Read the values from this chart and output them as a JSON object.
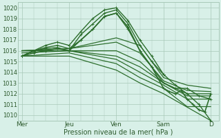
{
  "background_color": "#d8f0e8",
  "grid_color": "#a8c8b8",
  "line_color": "#2d6e2d",
  "marker_color": "#2d6e2d",
  "xlabel": "Pression niveau de la mer( hPa )",
  "yticks": [
    1010,
    1011,
    1012,
    1013,
    1014,
    1015,
    1016,
    1017,
    1018,
    1019,
    1020
  ],
  "xtick_labels": [
    "Mer",
    "Jeu",
    "Ven",
    "Sam",
    "D"
  ],
  "xtick_positions": [
    0,
    24,
    48,
    72,
    96
  ],
  "ylim": [
    1009.5,
    1020.5
  ],
  "xlim": [
    -2,
    100
  ],
  "series": [
    {
      "x": [
        0,
        6,
        12,
        18,
        24,
        30,
        36,
        42,
        48,
        54,
        60,
        66,
        72,
        78,
        84,
        90,
        96
      ],
      "y": [
        1015.5,
        1016.0,
        1016.3,
        1016.5,
        1016.2,
        1017.0,
        1018.0,
        1019.2,
        1019.5,
        1018.0,
        1016.0,
        1014.5,
        1013.0,
        1012.5,
        1012.5,
        1011.8,
        1011.5
      ],
      "marker": true,
      "lw": 1.0
    },
    {
      "x": [
        0,
        6,
        12,
        18,
        24,
        30,
        36,
        42,
        48,
        54,
        60,
        66,
        72,
        78,
        84,
        90,
        96
      ],
      "y": [
        1015.5,
        1016.0,
        1016.2,
        1016.3,
        1016.0,
        1017.5,
        1018.5,
        1019.5,
        1019.8,
        1018.5,
        1016.5,
        1015.0,
        1013.8,
        1012.8,
        1012.0,
        1011.0,
        1009.5
      ],
      "marker": true,
      "lw": 1.0
    },
    {
      "x": [
        0,
        6,
        12,
        18,
        24,
        30,
        36,
        42,
        48,
        54,
        60,
        66,
        72
      ],
      "y": [
        1015.5,
        1016.0,
        1016.5,
        1016.8,
        1016.5,
        1017.8,
        1019.0,
        1019.8,
        1020.0,
        1018.8,
        1017.0,
        1015.5,
        1013.8
      ],
      "marker": true,
      "lw": 1.0
    },
    {
      "x": [
        0,
        24,
        48,
        60,
        72,
        84,
        96
      ],
      "y": [
        1016.0,
        1016.2,
        1017.2,
        1016.5,
        1013.5,
        1012.8,
        1012.5
      ],
      "marker": false,
      "lw": 0.9
    },
    {
      "x": [
        0,
        24,
        48,
        60,
        72,
        84,
        96
      ],
      "y": [
        1016.0,
        1016.2,
        1016.8,
        1015.8,
        1013.2,
        1012.3,
        1012.2
      ],
      "marker": false,
      "lw": 0.9
    },
    {
      "x": [
        0,
        24,
        48,
        60,
        72,
        84,
        96
      ],
      "y": [
        1016.0,
        1016.0,
        1016.0,
        1015.0,
        1013.0,
        1012.0,
        1012.0
      ],
      "marker": false,
      "lw": 0.9
    },
    {
      "x": [
        0,
        24,
        48,
        60,
        72,
        84,
        96
      ],
      "y": [
        1016.0,
        1016.0,
        1015.5,
        1014.5,
        1013.0,
        1011.8,
        1011.8
      ],
      "marker": false,
      "lw": 0.9
    },
    {
      "x": [
        0,
        24,
        48,
        60,
        72,
        84,
        96
      ],
      "y": [
        1015.8,
        1016.0,
        1015.2,
        1014.0,
        1012.8,
        1011.5,
        1011.5
      ],
      "marker": false,
      "lw": 0.9
    },
    {
      "x": [
        0,
        24,
        48,
        60,
        72,
        84,
        96
      ],
      "y": [
        1015.5,
        1015.8,
        1014.8,
        1013.5,
        1012.5,
        1010.8,
        1010.8
      ],
      "marker": false,
      "lw": 0.9
    },
    {
      "x": [
        0,
        24,
        48,
        60,
        72,
        96
      ],
      "y": [
        1015.5,
        1015.5,
        1014.2,
        1013.0,
        1012.0,
        1009.5
      ],
      "marker": false,
      "lw": 0.9
    },
    {
      "x": [
        0,
        6,
        12,
        18,
        24,
        30,
        36,
        42,
        48,
        54,
        60,
        66,
        72,
        75,
        78,
        81,
        84,
        87,
        90,
        93,
        96
      ],
      "y": [
        1015.5,
        1015.8,
        1016.0,
        1016.2,
        1016.0,
        1017.0,
        1018.0,
        1019.2,
        1019.5,
        1018.2,
        1016.0,
        1014.5,
        1012.5,
        1012.2,
        1012.0,
        1012.3,
        1011.5,
        1011.0,
        1010.5,
        1010.3,
        1012.0
      ],
      "marker": true,
      "lw": 1.2
    }
  ]
}
